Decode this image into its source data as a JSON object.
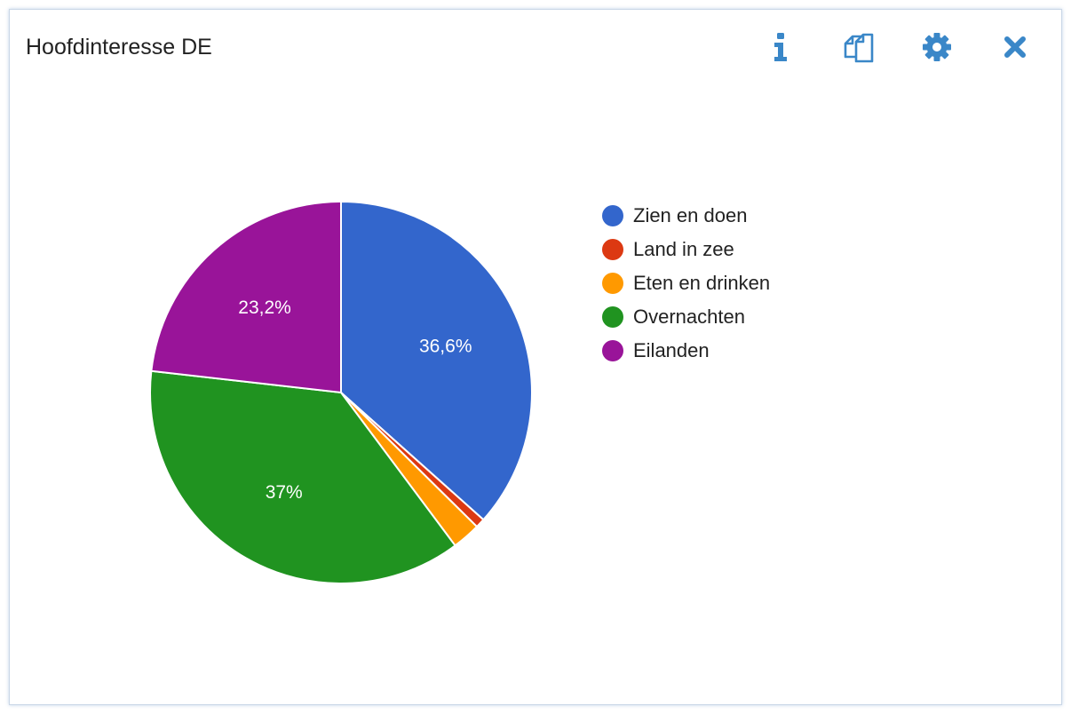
{
  "widget": {
    "title": "Hoofdinteresse DE",
    "toolbar": [
      {
        "icon": "info-icon"
      },
      {
        "icon": "copy-icon"
      },
      {
        "icon": "gear-icon"
      },
      {
        "icon": "close-icon"
      }
    ],
    "icon_color": "#3a87c8"
  },
  "chart_data": {
    "type": "pie",
    "title": "",
    "start_angle_deg": 0,
    "direction": "clockwise",
    "slices": [
      {
        "name": "Zien en doen",
        "value": 36.6,
        "label": "36,6%",
        "color": "#3366cc"
      },
      {
        "name": "Land in zee",
        "value": 0.8,
        "label": "",
        "color": "#dc3912"
      },
      {
        "name": "Eten en drinken",
        "value": 2.4,
        "label": "",
        "color": "#ff9900"
      },
      {
        "name": "Overnachten",
        "value": 37.0,
        "label": "37%",
        "color": "#209320"
      },
      {
        "name": "Eilanden",
        "value": 23.2,
        "label": "23,2%",
        "color": "#991499"
      }
    ],
    "legend_position": "right"
  }
}
